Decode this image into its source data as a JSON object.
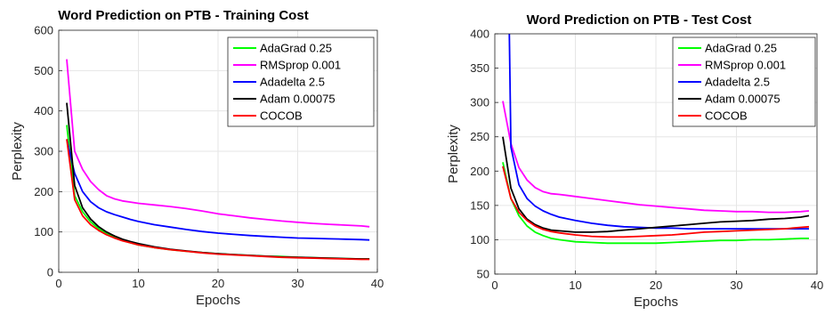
{
  "chart_data": [
    {
      "type": "line",
      "title": "Word Prediction on PTB - Training Cost",
      "xlabel": "Epochs",
      "ylabel": "Perplexity",
      "xlim": [
        0,
        40
      ],
      "ylim": [
        0,
        600
      ],
      "xticks": [
        0,
        10,
        20,
        30,
        40
      ],
      "yticks": [
        0,
        100,
        200,
        300,
        400,
        500,
        600
      ],
      "grid": true,
      "legend_position": "top-right",
      "series": [
        {
          "name": "AdaGrad 0.25",
          "color": "#00ff00",
          "x": [
            1,
            2,
            3,
            4,
            5,
            6,
            7,
            8,
            9,
            10,
            12,
            14,
            16,
            18,
            20,
            22,
            24,
            26,
            28,
            30,
            32,
            34,
            36,
            38,
            39
          ],
          "y": [
            365,
            190,
            150,
            125,
            108,
            96,
            87,
            79,
            73,
            68,
            61,
            56,
            52,
            49,
            46,
            44,
            42,
            40,
            39,
            37,
            36,
            35,
            34,
            33,
            33
          ]
        },
        {
          "name": "RMSprop 0.001",
          "color": "#ff00ff",
          "x": [
            1,
            2,
            3,
            4,
            5,
            6,
            7,
            8,
            9,
            10,
            12,
            14,
            16,
            18,
            20,
            22,
            24,
            26,
            28,
            30,
            32,
            34,
            36,
            38,
            39
          ],
          "y": [
            528,
            300,
            255,
            225,
            205,
            190,
            182,
            177,
            174,
            171,
            167,
            163,
            158,
            152,
            145,
            140,
            135,
            131,
            127,
            124,
            121,
            119,
            117,
            115,
            113
          ]
        },
        {
          "name": "Adadelta 2.5",
          "color": "#0000ff",
          "x": [
            1,
            2,
            3,
            4,
            5,
            6,
            7,
            8,
            9,
            10,
            12,
            14,
            16,
            18,
            20,
            22,
            24,
            26,
            28,
            30,
            32,
            34,
            36,
            38,
            39
          ],
          "y": [
            330,
            245,
            200,
            175,
            160,
            150,
            143,
            137,
            131,
            126,
            118,
            112,
            106,
            101,
            97,
            94,
            91,
            89,
            87,
            85,
            84,
            83,
            82,
            81,
            80
          ]
        },
        {
          "name": "Adam 0.00075",
          "color": "#000000",
          "x": [
            1,
            2,
            3,
            4,
            5,
            6,
            7,
            8,
            9,
            10,
            12,
            14,
            16,
            18,
            20,
            22,
            24,
            26,
            28,
            30,
            32,
            34,
            36,
            38,
            39
          ],
          "y": [
            420,
            215,
            160,
            132,
            113,
            100,
            90,
            82,
            76,
            71,
            63,
            57,
            53,
            49,
            46,
            44,
            42,
            40,
            38,
            37,
            36,
            35,
            34,
            33,
            33
          ]
        },
        {
          "name": "COCOB",
          "color": "#ff0000",
          "x": [
            1,
            2,
            3,
            4,
            5,
            6,
            7,
            8,
            9,
            10,
            12,
            14,
            16,
            18,
            20,
            22,
            24,
            26,
            28,
            30,
            32,
            34,
            36,
            38,
            39
          ],
          "y": [
            330,
            180,
            140,
            118,
            104,
            93,
            85,
            78,
            73,
            68,
            61,
            56,
            52,
            48,
            45,
            43,
            41,
            39,
            37,
            36,
            35,
            34,
            33,
            32,
            32
          ]
        }
      ]
    },
    {
      "type": "line",
      "title": "Word Prediction on PTB - Test Cost",
      "xlabel": "Epochs",
      "ylabel": "Perplexity",
      "xlim": [
        0,
        40
      ],
      "ylim": [
        50,
        400
      ],
      "xticks": [
        0,
        10,
        20,
        30,
        40
      ],
      "yticks": [
        50,
        100,
        150,
        200,
        250,
        300,
        350,
        400
      ],
      "grid": true,
      "legend_position": "top-right",
      "series": [
        {
          "name": "AdaGrad 0.25",
          "color": "#00ff00",
          "x": [
            1,
            2,
            3,
            4,
            5,
            6,
            7,
            8,
            10,
            12,
            14,
            16,
            18,
            20,
            22,
            24,
            26,
            28,
            30,
            32,
            34,
            36,
            38,
            39
          ],
          "y": [
            213,
            160,
            135,
            120,
            111,
            106,
            102,
            100,
            97,
            96,
            95,
            95,
            95,
            95,
            96,
            97,
            98,
            99,
            99,
            100,
            100,
            101,
            102,
            102
          ]
        },
        {
          "name": "RMSprop 0.001",
          "color": "#ff00ff",
          "x": [
            1,
            2,
            3,
            4,
            5,
            6,
            7,
            8,
            10,
            12,
            14,
            16,
            18,
            20,
            22,
            24,
            26,
            28,
            30,
            32,
            34,
            36,
            38,
            39
          ],
          "y": [
            302,
            240,
            205,
            187,
            176,
            170,
            167,
            166,
            163,
            160,
            157,
            154,
            151,
            149,
            147,
            145,
            143,
            142,
            141,
            141,
            140,
            140,
            141,
            142
          ]
        },
        {
          "name": "Adadelta 2.5",
          "color": "#0000ff",
          "x": [
            1.8,
            2,
            3,
            4,
            5,
            6,
            7,
            8,
            10,
            12,
            14,
            16,
            18,
            20,
            22,
            24,
            26,
            28,
            30,
            32,
            34,
            36,
            38,
            39
          ],
          "y": [
            400,
            235,
            180,
            160,
            149,
            142,
            137,
            133,
            128,
            124,
            121,
            119,
            118,
            117,
            117,
            116,
            116,
            116,
            116,
            116,
            116,
            116,
            116,
            116
          ]
        },
        {
          "name": "Adam 0.00075",
          "color": "#000000",
          "x": [
            1,
            2,
            3,
            4,
            5,
            6,
            7,
            8,
            10,
            12,
            14,
            16,
            18,
            20,
            22,
            24,
            26,
            28,
            30,
            32,
            34,
            36,
            38,
            39
          ],
          "y": [
            250,
            175,
            145,
            130,
            122,
            117,
            114,
            113,
            111,
            111,
            112,
            114,
            116,
            118,
            120,
            122,
            124,
            126,
            127,
            128,
            130,
            131,
            133,
            135
          ]
        },
        {
          "name": "COCOB",
          "color": "#ff0000",
          "x": [
            1,
            2,
            3,
            4,
            5,
            6,
            7,
            8,
            10,
            12,
            14,
            16,
            18,
            20,
            22,
            24,
            26,
            28,
            30,
            32,
            34,
            36,
            38,
            39
          ],
          "y": [
            207,
            160,
            140,
            128,
            120,
            115,
            112,
            110,
            107,
            105,
            104,
            104,
            105,
            106,
            107,
            109,
            111,
            112,
            113,
            114,
            115,
            116,
            118,
            119
          ]
        }
      ]
    }
  ]
}
